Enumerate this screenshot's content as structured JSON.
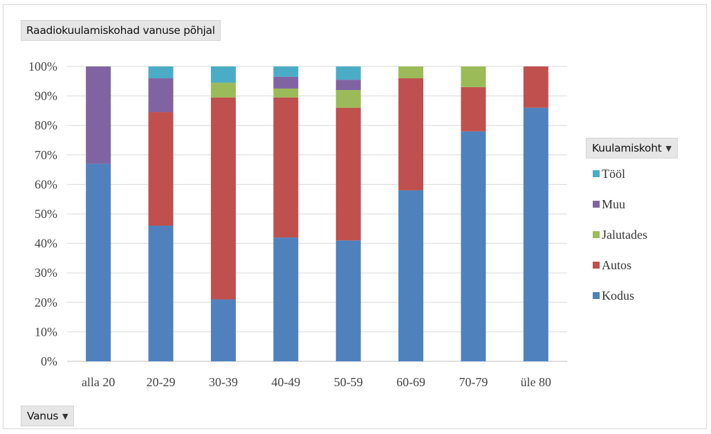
{
  "chart_data": {
    "type": "bar",
    "stacked": true,
    "title": "Raadiokuulamiskohad vanuse põhjal",
    "xlabel": "Vanus",
    "ylabel": "",
    "ylim": [
      0,
      100
    ],
    "y_ticks": [
      "0%",
      "10%",
      "20%",
      "30%",
      "40%",
      "50%",
      "60%",
      "70%",
      "80%",
      "90%",
      "100%"
    ],
    "grid": true,
    "legend_title": "Kuulamiskoht",
    "legend_position": "right",
    "categories": [
      "alla 20",
      "20-29",
      "30-39",
      "40-49",
      "50-59",
      "60-69",
      "70-79",
      "üle 80"
    ],
    "series": [
      {
        "name": "Kodus",
        "color": "#4f81bd",
        "values": [
          67,
          46,
          21,
          42,
          41,
          58,
          78,
          86
        ]
      },
      {
        "name": "Autos",
        "color": "#c0504d",
        "values": [
          0,
          38.5,
          68.5,
          47.5,
          45,
          38,
          15,
          14
        ]
      },
      {
        "name": "Jalutades",
        "color": "#9bbb59",
        "values": [
          0,
          0,
          5,
          3,
          6,
          4,
          7,
          0
        ]
      },
      {
        "name": "Muu",
        "color": "#8064a2",
        "values": [
          33,
          11.5,
          0,
          4,
          3.5,
          0,
          0,
          0
        ]
      },
      {
        "name": "Tööl",
        "color": "#4bacc6",
        "values": [
          0,
          4,
          5.5,
          3.5,
          4.5,
          0,
          0,
          0
        ]
      }
    ]
  }
}
